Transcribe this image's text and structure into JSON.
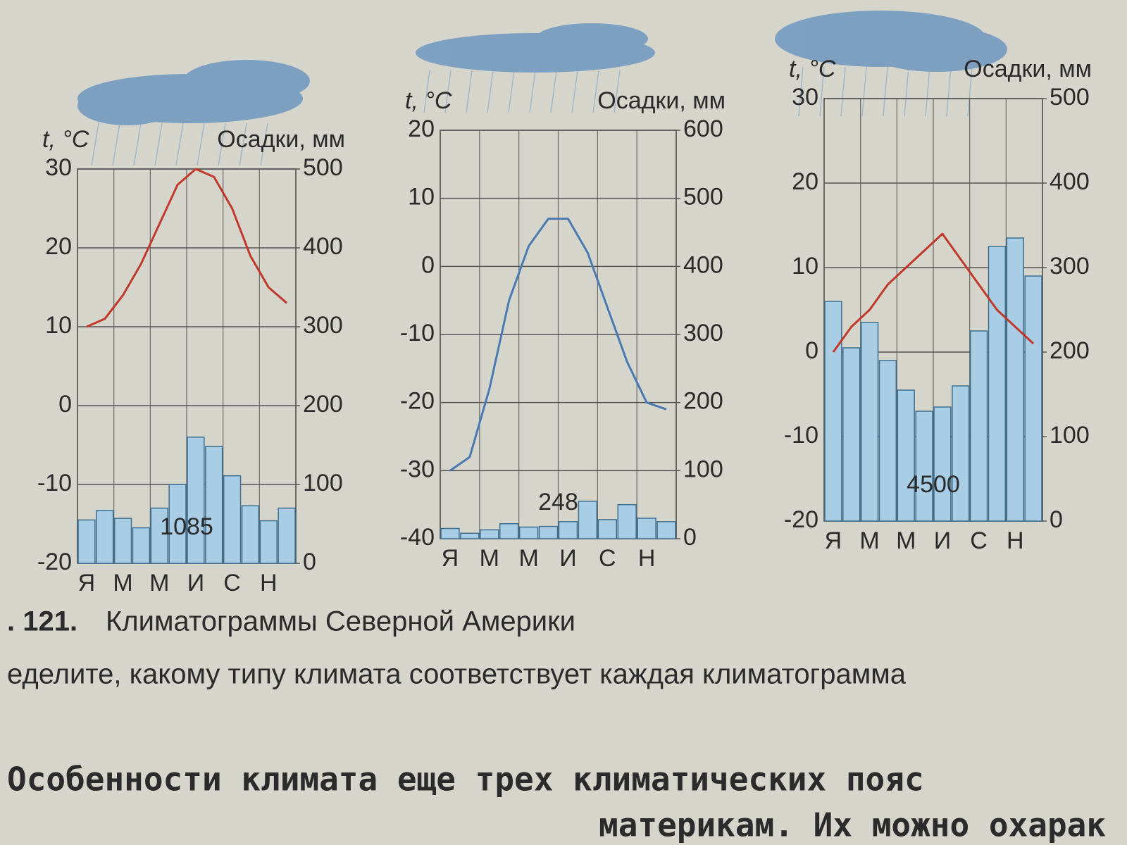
{
  "chart_data": [
    {
      "type": "combo",
      "y_label": "t, °C",
      "y2_label": "Осадки, мм",
      "annotation": "1085",
      "categories": [
        "Я",
        null,
        "М",
        null,
        "М",
        null,
        "И",
        null,
        "С",
        null,
        "Н",
        null
      ],
      "ylim": [
        -20,
        30
      ],
      "yticks": [
        -20,
        -10,
        0,
        10,
        20,
        30
      ],
      "y2lim": [
        0,
        500
      ],
      "y2ticks": [
        0,
        100,
        200,
        300,
        400,
        500
      ],
      "grid": true,
      "series": [
        {
          "type": "bar",
          "axis": "y2",
          "color": "#a8cde4",
          "values": [
            55,
            67,
            57,
            45,
            70,
            100,
            160,
            148,
            111,
            73,
            54,
            70
          ]
        },
        {
          "type": "line",
          "color": "#c0392b",
          "values": [
            10,
            11,
            14,
            18,
            23,
            28,
            30,
            29,
            25,
            19,
            15,
            13
          ]
        }
      ]
    },
    {
      "type": "combo",
      "y_label": "t, °C",
      "y2_label": "Осадки, мм",
      "annotation": "248",
      "categories": [
        "Я",
        null,
        "М",
        null,
        "М",
        null,
        "И",
        null,
        "С",
        null,
        "Н",
        null
      ],
      "ylim": [
        -40,
        20
      ],
      "yticks": [
        -40,
        -30,
        -20,
        -10,
        0,
        10,
        20
      ],
      "y2lim": [
        0,
        600
      ],
      "y2ticks": [
        0,
        100,
        200,
        300,
        400,
        500,
        600
      ],
      "grid": true,
      "series": [
        {
          "type": "bar",
          "axis": "y2",
          "color": "#a8cde4",
          "values": [
            15,
            8,
            13,
            22,
            17,
            18,
            25,
            55,
            28,
            50,
            30,
            25
          ]
        },
        {
          "type": "line",
          "color": "#4a7ab0",
          "values": [
            -30,
            -28,
            -18,
            -5,
            3,
            7,
            7,
            2,
            -6,
            -14,
            -20,
            -21
          ]
        }
      ]
    },
    {
      "type": "combo",
      "y_label": "t, °C",
      "y2_label": "Осадки, мм",
      "annotation": "4500",
      "categories": [
        "Я",
        null,
        "М",
        null,
        "М",
        null,
        "И",
        null,
        "С",
        null,
        "Н",
        null
      ],
      "ylim": [
        -20,
        30
      ],
      "yticks": [
        -20,
        -10,
        0,
        10,
        20,
        30
      ],
      "y2lim": [
        0,
        500
      ],
      "y2ticks": [
        0,
        100,
        200,
        300,
        400,
        500
      ],
      "grid": true,
      "series": [
        {
          "type": "bar",
          "axis": "y2",
          "color": "#a8cde4",
          "values": [
            260,
            205,
            235,
            190,
            155,
            130,
            135,
            160,
            225,
            325,
            335,
            290
          ]
        },
        {
          "type": "line",
          "color": "#c0392b",
          "values": [
            0,
            3,
            5,
            8,
            10,
            12,
            14,
            11,
            8,
            5,
            3,
            1
          ]
        }
      ]
    }
  ],
  "caption": {
    "number": ". 121.",
    "title": "Климатограммы Северной Америки",
    "line2": "еделите, какому типу климата соответствует каждая климатограмма"
  },
  "text": {
    "line1": "Особенности климата еще трех климатических пояс",
    "line2": "материкам. Их можно охарак"
  }
}
